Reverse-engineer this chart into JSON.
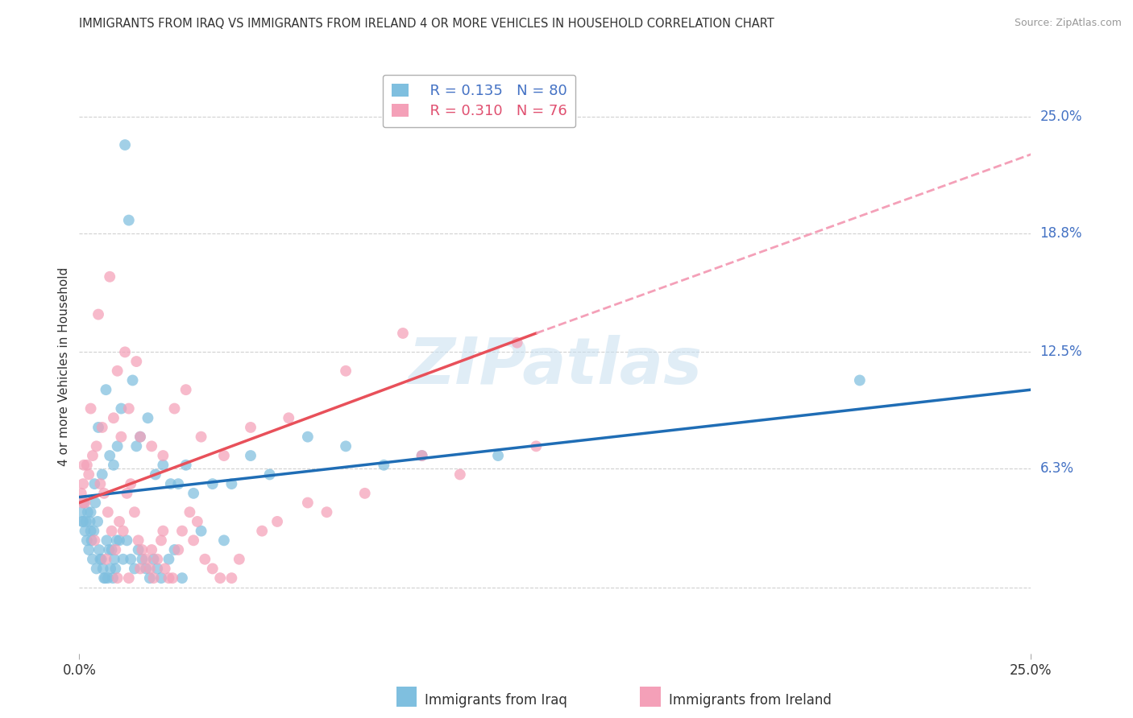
{
  "title": "IMMIGRANTS FROM IRAQ VS IMMIGRANTS FROM IRELAND 4 OR MORE VEHICLES IN HOUSEHOLD CORRELATION CHART",
  "source": "Source: ZipAtlas.com",
  "ylabel": "4 or more Vehicles in Household",
  "xmin": 0.0,
  "xmax": 25.0,
  "ymin": -3.5,
  "ymax": 27.0,
  "ytick_vals": [
    0.0,
    6.3,
    12.5,
    18.8,
    25.0
  ],
  "ytick_labels": [
    "",
    "6.3%",
    "12.5%",
    "18.8%",
    "25.0%"
  ],
  "xtick_vals": [
    0.0,
    25.0
  ],
  "xtick_labels": [
    "0.0%",
    "25.0%"
  ],
  "iraq_color": "#7fbfdf",
  "ireland_color": "#f4a0b8",
  "iraq_line_color": "#1f6db5",
  "ireland_line_color": "#e8505a",
  "ireland_dash_color": "#f4a0b8",
  "watermark_color": "#c8dff0",
  "watermark_text": "ZIPatlas",
  "legend_iraq_r": "0.135",
  "legend_iraq_n": "80",
  "legend_ireland_r": "0.310",
  "legend_ireland_n": "76",
  "legend_r_color": "#4472c4",
  "legend_n_color": "#e05070",
  "iraq_scatter_x": [
    1.2,
    1.3,
    0.5,
    0.7,
    0.3,
    0.4,
    0.6,
    0.8,
    0.9,
    1.0,
    1.1,
    1.4,
    1.5,
    1.6,
    1.8,
    2.0,
    2.2,
    2.4,
    2.6,
    2.8,
    3.0,
    3.5,
    4.0,
    4.5,
    5.0,
    6.0,
    7.0,
    8.0,
    9.0,
    11.0,
    20.5,
    0.1,
    0.15,
    0.2,
    0.25,
    0.3,
    0.35,
    0.45,
    0.55,
    0.65,
    0.75,
    0.85,
    0.95,
    1.05,
    1.15,
    1.25,
    1.35,
    1.45,
    1.55,
    1.65,
    1.75,
    1.85,
    1.95,
    2.05,
    2.15,
    2.35,
    2.5,
    2.7,
    3.2,
    3.8,
    0.05,
    0.08,
    0.12,
    0.18,
    0.22,
    0.28,
    0.32,
    0.38,
    0.42,
    0.48,
    0.52,
    0.58,
    0.62,
    0.68,
    0.72,
    0.78,
    0.82,
    0.88,
    0.92,
    0.98
  ],
  "iraq_scatter_y": [
    23.5,
    19.5,
    8.5,
    10.5,
    4.0,
    5.5,
    6.0,
    7.0,
    6.5,
    7.5,
    9.5,
    11.0,
    7.5,
    8.0,
    9.0,
    6.0,
    6.5,
    5.5,
    5.5,
    6.5,
    5.0,
    5.5,
    5.5,
    7.0,
    6.0,
    8.0,
    7.5,
    6.5,
    7.0,
    7.0,
    11.0,
    3.5,
    3.0,
    2.5,
    2.0,
    3.0,
    1.5,
    1.0,
    1.5,
    0.5,
    0.5,
    2.0,
    1.0,
    2.5,
    1.5,
    2.5,
    1.5,
    1.0,
    2.0,
    1.5,
    1.0,
    0.5,
    1.5,
    1.0,
    0.5,
    1.5,
    2.0,
    0.5,
    3.0,
    2.5,
    4.0,
    3.5,
    4.5,
    3.5,
    4.0,
    3.5,
    2.5,
    3.0,
    4.5,
    3.5,
    2.0,
    1.5,
    1.0,
    0.5,
    2.5,
    2.0,
    1.0,
    0.5,
    1.5,
    2.5
  ],
  "ireland_scatter_x": [
    0.5,
    1.0,
    0.8,
    1.5,
    1.2,
    0.3,
    0.6,
    0.9,
    1.1,
    1.3,
    1.6,
    1.9,
    2.2,
    2.5,
    2.8,
    3.2,
    3.8,
    4.5,
    5.5,
    7.0,
    8.5,
    11.5,
    0.2,
    0.25,
    0.35,
    0.45,
    0.55,
    0.65,
    0.75,
    0.85,
    0.95,
    1.05,
    1.15,
    1.25,
    1.35,
    1.45,
    1.55,
    1.65,
    1.75,
    1.85,
    1.95,
    2.05,
    2.15,
    2.25,
    2.35,
    2.45,
    2.6,
    2.7,
    2.9,
    3.0,
    3.1,
    3.3,
    3.5,
    3.7,
    4.0,
    4.2,
    4.8,
    5.2,
    6.0,
    6.5,
    7.5,
    9.0,
    10.0,
    12.0,
    0.1,
    0.15,
    0.4,
    0.7,
    1.0,
    1.3,
    1.6,
    1.9,
    2.2,
    0.05,
    0.08,
    0.12
  ],
  "ireland_scatter_y": [
    14.5,
    11.5,
    16.5,
    12.0,
    12.5,
    9.5,
    8.5,
    9.0,
    8.0,
    9.5,
    8.0,
    7.5,
    7.0,
    9.5,
    10.5,
    8.0,
    7.0,
    8.5,
    9.0,
    11.5,
    13.5,
    13.0,
    6.5,
    6.0,
    7.0,
    7.5,
    5.5,
    5.0,
    4.0,
    3.0,
    2.0,
    3.5,
    3.0,
    5.0,
    5.5,
    4.0,
    2.5,
    2.0,
    1.5,
    1.0,
    0.5,
    1.5,
    2.5,
    1.0,
    0.5,
    0.5,
    2.0,
    3.0,
    4.0,
    2.5,
    3.5,
    1.5,
    1.0,
    0.5,
    0.5,
    1.5,
    3.0,
    3.5,
    4.5,
    4.0,
    5.0,
    7.0,
    6.0,
    7.5,
    5.5,
    4.5,
    2.5,
    1.5,
    0.5,
    0.5,
    1.0,
    2.0,
    3.0,
    5.0,
    4.5,
    6.5
  ],
  "iraq_line_x0": 0.0,
  "iraq_line_x1": 25.0,
  "iraq_line_y0": 4.8,
  "iraq_line_y1": 10.5,
  "ireland_line_solid_x0": 0.0,
  "ireland_line_solid_x1": 12.0,
  "ireland_line_solid_y0": 4.5,
  "ireland_line_solid_y1": 13.5,
  "ireland_line_dash_x0": 12.0,
  "ireland_line_dash_x1": 25.0,
  "ireland_line_dash_y0": 13.5,
  "ireland_line_dash_y1": 23.0
}
